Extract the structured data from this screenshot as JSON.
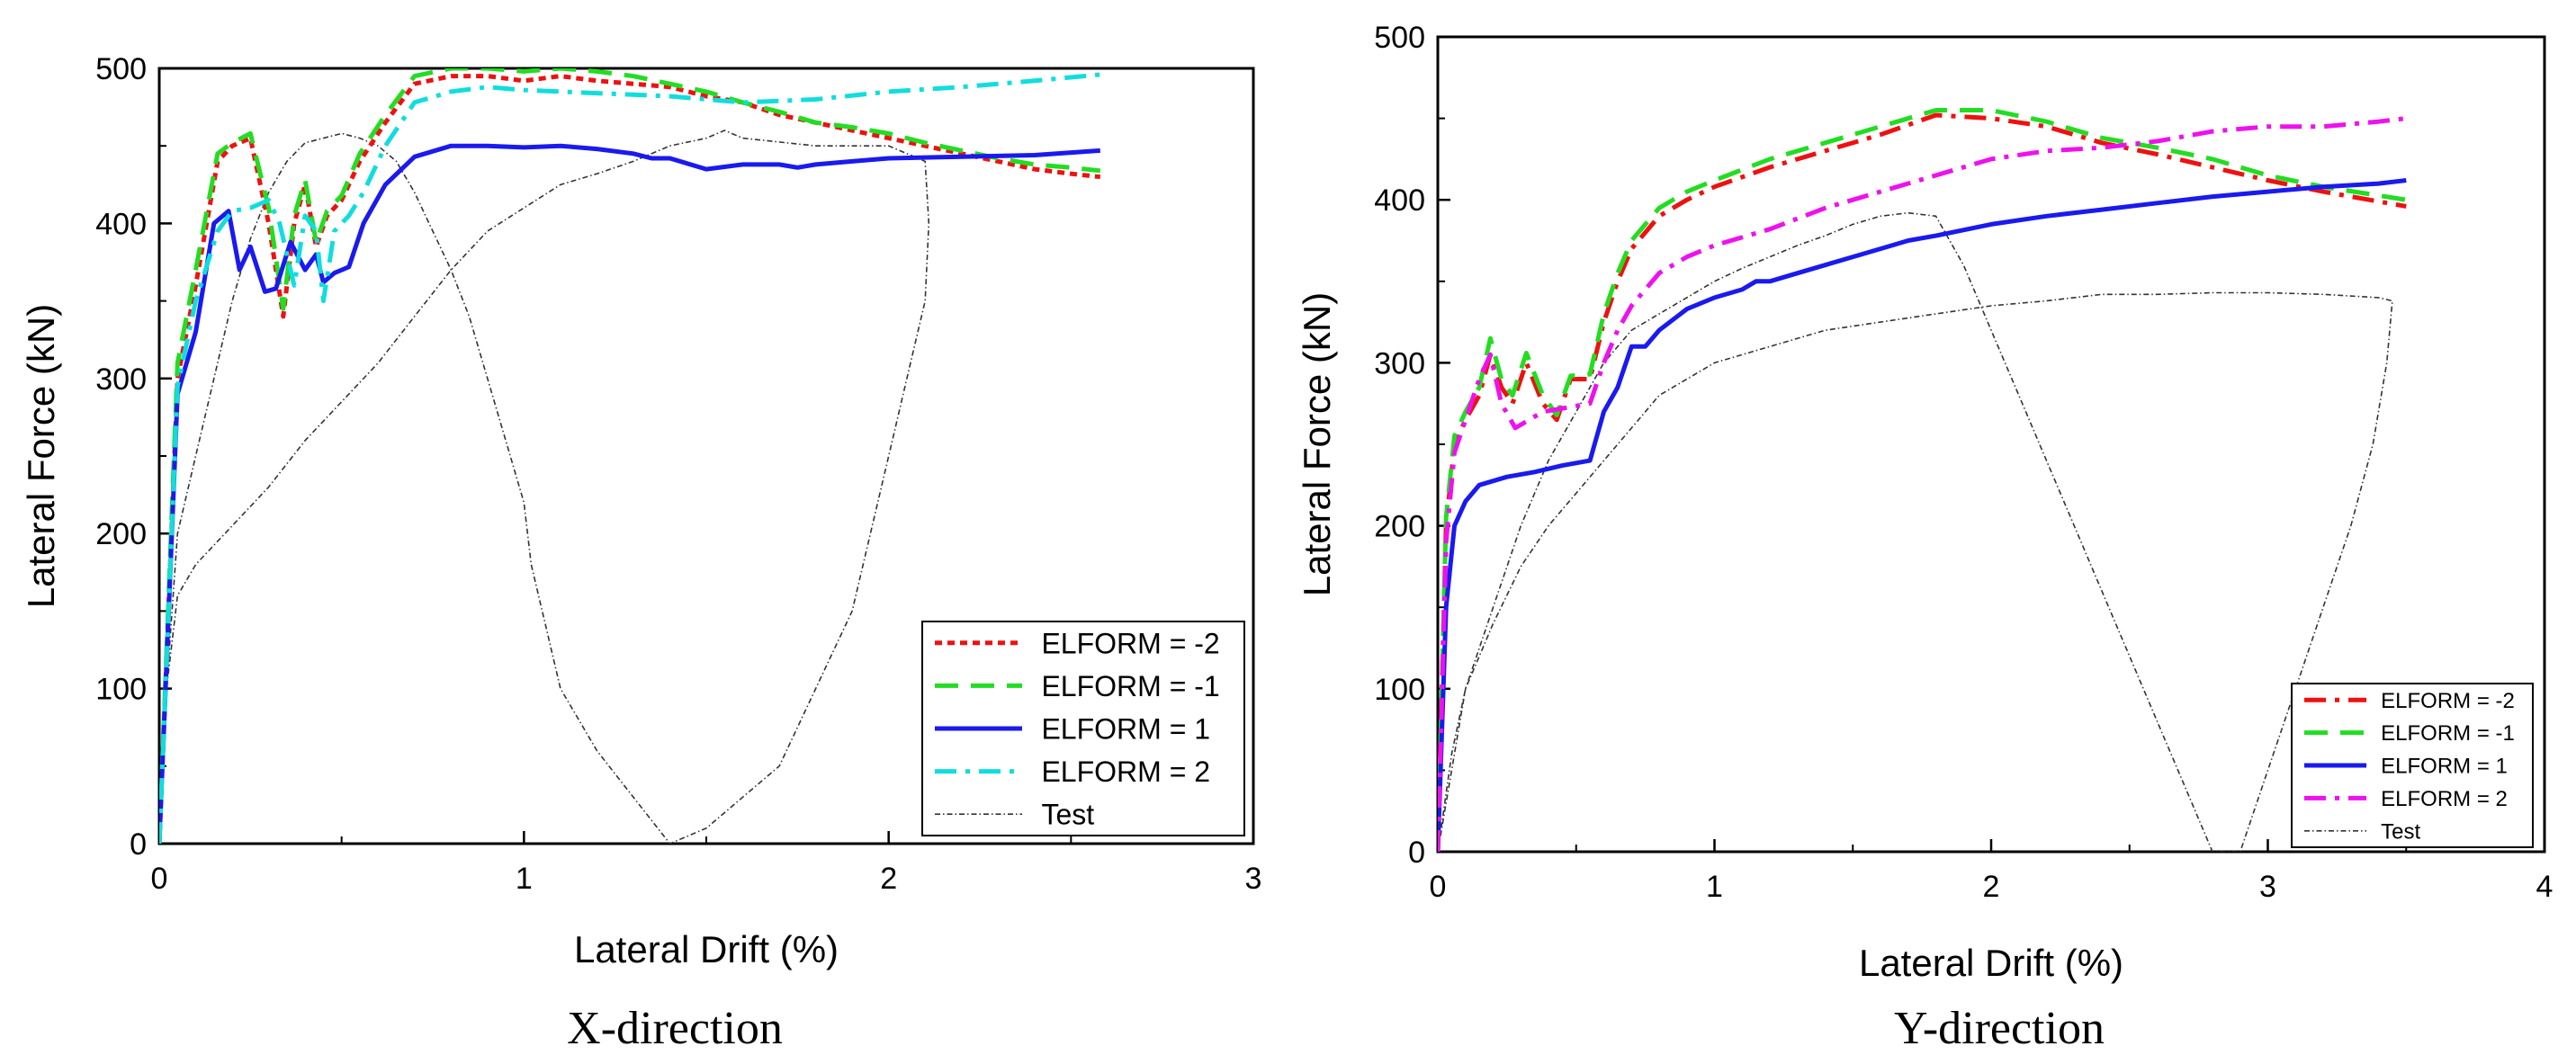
{
  "chart_data": [
    {
      "type": "line",
      "caption": "X-direction",
      "xlabel": "Lateral Drift (%)",
      "ylabel": "Lateral Force (kN)",
      "xlim": [
        0,
        3
      ],
      "ylim": [
        0,
        500
      ],
      "xticks": [
        0,
        1,
        2,
        3
      ],
      "yticks": [
        0,
        100,
        200,
        300,
        400,
        500
      ],
      "grid": false,
      "legend_position": "bottom-right",
      "series": [
        {
          "name": "ELFORM = -2",
          "color": "#ee1111",
          "dash": "dot",
          "x": [
            0,
            0.05,
            0.1,
            0.16,
            0.2,
            0.25,
            0.3,
            0.34,
            0.37,
            0.4,
            0.43,
            0.46,
            0.5,
            0.55,
            0.62,
            0.7,
            0.8,
            0.9,
            1.0,
            1.1,
            1.2,
            1.3,
            1.4,
            1.5,
            1.6,
            1.7,
            1.8,
            1.9,
            2.0,
            2.1,
            2.2,
            2.3,
            2.4,
            2.5,
            2.58
          ],
          "values": [
            0,
            300,
            360,
            440,
            450,
            455,
            400,
            340,
            400,
            425,
            385,
            405,
            415,
            440,
            465,
            490,
            495,
            495,
            492,
            495,
            492,
            490,
            488,
            482,
            478,
            470,
            465,
            460,
            455,
            450,
            445,
            440,
            435,
            432,
            430
          ]
        },
        {
          "name": "ELFORM = -1",
          "color": "#22dd22",
          "dash": "dash",
          "x": [
            0,
            0.05,
            0.1,
            0.16,
            0.2,
            0.25,
            0.3,
            0.34,
            0.37,
            0.4,
            0.43,
            0.46,
            0.5,
            0.55,
            0.62,
            0.7,
            0.8,
            0.9,
            1.0,
            1.1,
            1.2,
            1.3,
            1.4,
            1.5,
            1.6,
            1.7,
            1.8,
            1.9,
            2.0,
            2.1,
            2.2,
            2.3,
            2.4,
            2.5,
            2.58
          ],
          "values": [
            0,
            310,
            370,
            445,
            452,
            458,
            410,
            345,
            405,
            428,
            388,
            408,
            418,
            445,
            470,
            495,
            500,
            500,
            498,
            500,
            498,
            495,
            490,
            485,
            478,
            472,
            465,
            462,
            458,
            452,
            447,
            442,
            438,
            436,
            434
          ]
        },
        {
          "name": "ELFORM = 1",
          "color": "#1a1aee",
          "dash": "solid",
          "x": [
            0,
            0.05,
            0.1,
            0.15,
            0.19,
            0.22,
            0.25,
            0.29,
            0.32,
            0.36,
            0.4,
            0.43,
            0.45,
            0.48,
            0.52,
            0.56,
            0.62,
            0.7,
            0.8,
            0.9,
            1.0,
            1.1,
            1.2,
            1.3,
            1.35,
            1.4,
            1.5,
            1.6,
            1.7,
            1.75,
            1.8,
            1.9,
            2.0,
            2.2,
            2.4,
            2.58
          ],
          "values": [
            0,
            290,
            330,
            400,
            408,
            370,
            385,
            356,
            358,
            388,
            370,
            380,
            362,
            368,
            372,
            400,
            425,
            443,
            450,
            450,
            449,
            450,
            448,
            445,
            442,
            442,
            435,
            438,
            438,
            436,
            438,
            440,
            442,
            443,
            444,
            447
          ]
        },
        {
          "name": "ELFORM = 2",
          "color": "#11dddd",
          "dash": "dashdot",
          "x": [
            0,
            0.05,
            0.1,
            0.16,
            0.2,
            0.25,
            0.3,
            0.33,
            0.37,
            0.4,
            0.43,
            0.45,
            0.48,
            0.52,
            0.56,
            0.62,
            0.7,
            0.8,
            0.9,
            1.0,
            1.2,
            1.4,
            1.6,
            1.8,
            2.0,
            2.2,
            2.4,
            2.58
          ],
          "values": [
            0,
            295,
            350,
            395,
            408,
            410,
            415,
            400,
            360,
            405,
            395,
            350,
            395,
            405,
            420,
            450,
            478,
            485,
            488,
            486,
            484,
            482,
            478,
            480,
            485,
            488,
            492,
            496
          ]
        }
      ],
      "test": {
        "name": "Test",
        "color": "#333333",
        "x": [
          0,
          0.02,
          0.05,
          0.1,
          0.2,
          0.3,
          0.4,
          0.5,
          0.6,
          0.7,
          0.8,
          0.9,
          1.0,
          1.1,
          1.2,
          1.3,
          1.4,
          1.5,
          1.55,
          1.6,
          1.8,
          2.0,
          2.1,
          2.11,
          2.1,
          2.05,
          2.0,
          1.95,
          1.9,
          1.8,
          1.7,
          1.6,
          1.5,
          1.4,
          1.3,
          1.2,
          1.1,
          1.06,
          1.02,
          1.0,
          0.95,
          0.9,
          0.85,
          0.8,
          0.75,
          0.7,
          0.65,
          0.6,
          0.55,
          0.5,
          0.45,
          0.4,
          0.35,
          0.3,
          0.25,
          0.2,
          0.15,
          0.1,
          0.05,
          0.02,
          0
        ],
        "values": [
          0,
          100,
          160,
          180,
          205,
          230,
          260,
          285,
          310,
          340,
          370,
          395,
          410,
          425,
          432,
          440,
          450,
          455,
          460,
          455,
          450,
          450,
          440,
          400,
          350,
          300,
          250,
          200,
          150,
          100,
          50,
          30,
          10,
          0,
          30,
          60,
          100,
          140,
          180,
          220,
          260,
          300,
          340,
          370,
          395,
          420,
          440,
          450,
          455,
          458,
          455,
          452,
          440,
          420,
          390,
          350,
          300,
          250,
          200,
          100,
          0
        ]
      }
    },
    {
      "type": "line",
      "caption": "Y-direction",
      "xlabel": "Lateral Drift (%)",
      "ylabel": "Lateral Force (kN)",
      "xlim": [
        0,
        4
      ],
      "ylim": [
        0,
        500
      ],
      "xticks": [
        0,
        1,
        2,
        3,
        4
      ],
      "yticks": [
        0,
        100,
        200,
        300,
        400,
        500
      ],
      "grid": false,
      "legend_position": "bottom-right",
      "series": [
        {
          "name": "ELFORM = -2",
          "color": "#ee1111",
          "dash": "dashdot",
          "x": [
            0,
            0.03,
            0.06,
            0.1,
            0.15,
            0.19,
            0.23,
            0.27,
            0.32,
            0.38,
            0.43,
            0.48,
            0.55,
            0.6,
            0.65,
            0.7,
            0.8,
            0.9,
            1.0,
            1.2,
            1.4,
            1.6,
            1.8,
            2.0,
            2.2,
            2.4,
            2.6,
            2.8,
            3.0,
            3.2,
            3.5
          ],
          "values": [
            0,
            200,
            250,
            265,
            280,
            305,
            285,
            275,
            300,
            275,
            265,
            290,
            290,
            325,
            350,
            370,
            390,
            400,
            408,
            420,
            430,
            440,
            452,
            450,
            445,
            435,
            428,
            420,
            412,
            405,
            396
          ]
        },
        {
          "name": "ELFORM = -1",
          "color": "#22dd22",
          "dash": "dash",
          "x": [
            0,
            0.03,
            0.06,
            0.1,
            0.15,
            0.19,
            0.23,
            0.27,
            0.32,
            0.38,
            0.43,
            0.48,
            0.55,
            0.6,
            0.65,
            0.7,
            0.8,
            0.9,
            1.0,
            1.2,
            1.4,
            1.6,
            1.8,
            2.0,
            2.2,
            2.4,
            2.6,
            2.8,
            3.0,
            3.2,
            3.5
          ],
          "values": [
            0,
            205,
            255,
            270,
            285,
            315,
            290,
            280,
            306,
            280,
            268,
            292,
            293,
            330,
            355,
            375,
            395,
            405,
            412,
            425,
            435,
            445,
            455,
            455,
            448,
            438,
            432,
            425,
            415,
            408,
            400
          ]
        },
        {
          "name": "ELFORM = 1",
          "color": "#1a1aee",
          "dash": "solid",
          "x": [
            0,
            0.03,
            0.06,
            0.1,
            0.15,
            0.25,
            0.35,
            0.45,
            0.55,
            0.6,
            0.65,
            0.7,
            0.75,
            0.8,
            0.9,
            1.0,
            1.1,
            1.15,
            1.2,
            1.3,
            1.4,
            1.5,
            1.6,
            1.7,
            1.8,
            2.0,
            2.2,
            2.4,
            2.6,
            2.8,
            3.0,
            3.2,
            3.4,
            3.5
          ],
          "values": [
            0,
            150,
            200,
            215,
            225,
            230,
            233,
            237,
            240,
            270,
            285,
            310,
            310,
            320,
            333,
            340,
            345,
            350,
            350,
            355,
            360,
            365,
            370,
            375,
            378,
            385,
            390,
            394,
            398,
            402,
            405,
            408,
            410,
            412
          ]
        },
        {
          "name": "ELFORM = 2",
          "color": "#ee11ee",
          "dash": "dashdot",
          "x": [
            0,
            0.03,
            0.06,
            0.1,
            0.15,
            0.19,
            0.23,
            0.28,
            0.33,
            0.38,
            0.45,
            0.55,
            0.6,
            0.65,
            0.7,
            0.8,
            0.9,
            1.0,
            1.2,
            1.4,
            1.6,
            1.8,
            2.0,
            2.2,
            2.4,
            2.6,
            2.8,
            3.0,
            3.2,
            3.4,
            3.5
          ],
          "values": [
            0,
            190,
            245,
            265,
            290,
            305,
            275,
            260,
            265,
            270,
            272,
            275,
            300,
            320,
            335,
            355,
            365,
            372,
            382,
            395,
            405,
            415,
            425,
            430,
            432,
            436,
            442,
            445,
            445,
            448,
            450
          ]
        }
      ],
      "test": {
        "name": "Test",
        "color": "#333333",
        "x": [
          0,
          0.05,
          0.1,
          0.2,
          0.3,
          0.4,
          0.5,
          0.6,
          0.7,
          0.8,
          1.0,
          1.2,
          1.4,
          1.6,
          1.8,
          2.0,
          2.2,
          2.3,
          2.4,
          2.6,
          2.8,
          3.0,
          3.2,
          3.4,
          3.45,
          3.43,
          3.38,
          3.3,
          3.2,
          3.1,
          3.0,
          2.9,
          2.8,
          2.7,
          2.6,
          2.5,
          2.4,
          2.3,
          2.2,
          2.1,
          2.0,
          1.9,
          1.8,
          1.7,
          1.6,
          1.5,
          1.4,
          1.3,
          1.2,
          1.1,
          1.0,
          0.9,
          0.8,
          0.7,
          0.6,
          0.5,
          0.4,
          0.3,
          0.2,
          0.1,
          0.05,
          0
        ],
        "values": [
          0,
          60,
          100,
          140,
          175,
          200,
          220,
          240,
          260,
          280,
          300,
          310,
          320,
          325,
          330,
          335,
          338,
          340,
          342,
          342,
          343,
          343,
          342,
          340,
          338,
          300,
          250,
          200,
          150,
          100,
          50,
          0,
          0,
          40,
          80,
          120,
          160,
          200,
          240,
          280,
          320,
          360,
          390,
          392,
          390,
          385,
          378,
          372,
          365,
          358,
          350,
          340,
          330,
          320,
          300,
          270,
          240,
          200,
          150,
          100,
          50,
          0
        ]
      }
    }
  ]
}
